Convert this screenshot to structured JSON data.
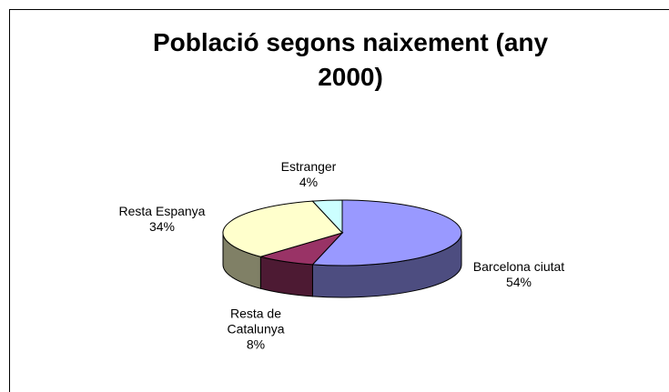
{
  "chart_data": {
    "type": "pie3d",
    "title": "Població segons naixement (any 2000)",
    "categories": [
      "Barcelona ciutat",
      "Resta de Catalunya",
      "Resta Espanya",
      "Estranger"
    ],
    "values": [
      54,
      8,
      34,
      4
    ],
    "value_labels": [
      "54%",
      "8%",
      "34%",
      "4%"
    ],
    "colors": [
      "#9999ff",
      "#993366",
      "#ffffcc",
      "#ccffff"
    ]
  }
}
